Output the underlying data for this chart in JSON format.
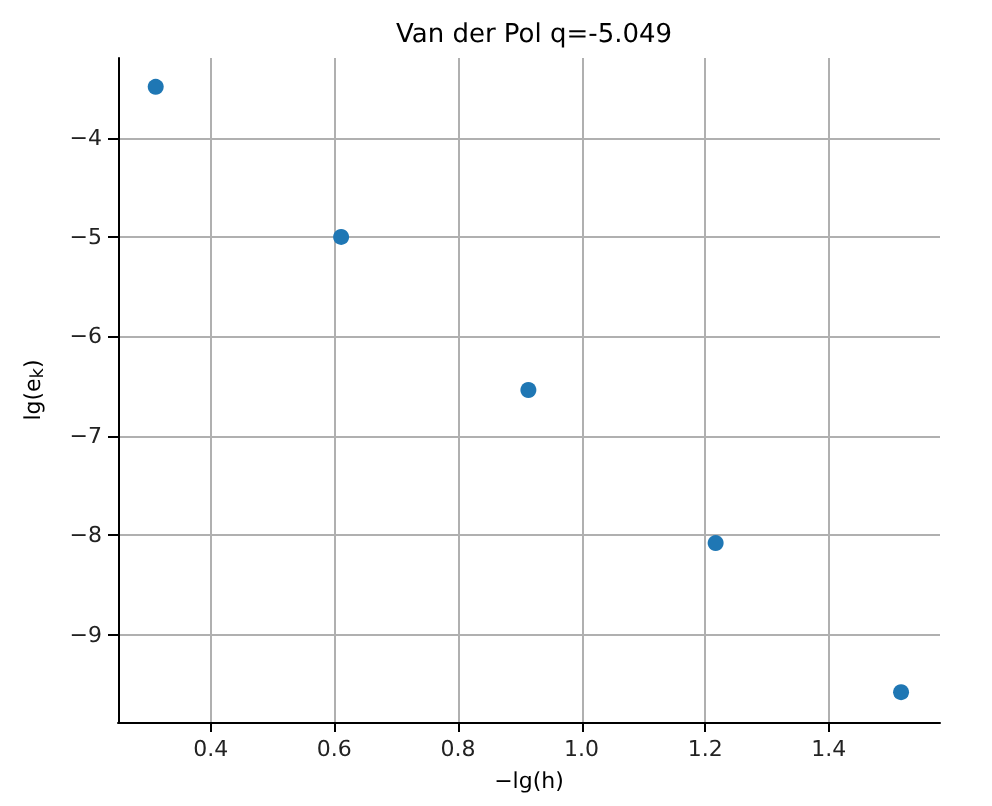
{
  "chart_data": {
    "type": "scatter",
    "title": "Van der Pol q=-5.049",
    "xlabel": "−lg(h)",
    "ylabel": "lg(e$_{k}$)",
    "x": [
      0.311,
      0.611,
      0.914,
      1.217,
      1.517
    ],
    "series": [
      {
        "color": "#1f77b4",
        "values": [
          -3.49,
          -5.0,
          -6.54,
          -8.08,
          -9.58
        ]
      }
    ],
    "xlim": [
      0.25,
      1.58
    ],
    "xticks": [
      0.4,
      0.6,
      0.8,
      {
        "value": 1,
        "label": "1.0"
      },
      1.2,
      1.4
    ],
    "ylim": [
      -9.88,
      -3.2
    ],
    "yticks": [
      -9,
      -8,
      -7,
      -6,
      -5,
      -4
    ],
    "grid": true,
    "marker": "circle"
  }
}
